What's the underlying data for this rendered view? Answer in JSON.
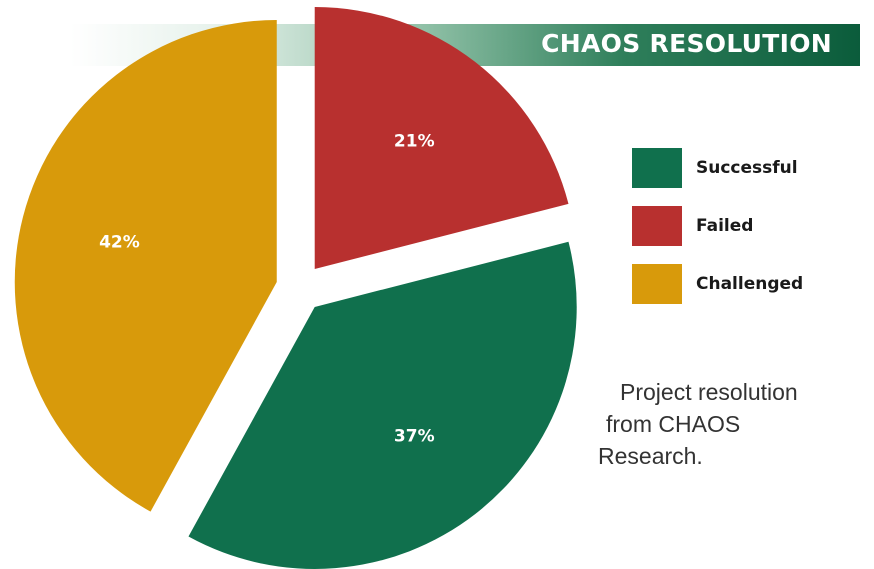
{
  "chart_data": {
    "type": "pie",
    "title": "CHAOS RESOLUTION",
    "categories": [
      "Successful",
      "Failed",
      "Challenged"
    ],
    "values": [
      37,
      21,
      42
    ],
    "value_labels": [
      "37%",
      "21%",
      "42%"
    ],
    "colors": [
      "#10704d",
      "#b8302f",
      "#d89a0b"
    ],
    "exploded": true,
    "legend_position": "right"
  },
  "legend": {
    "items": [
      {
        "label": "Successful",
        "color": "#10704d"
      },
      {
        "label": "Failed",
        "color": "#b8302f"
      },
      {
        "label": "Challenged",
        "color": "#d89a0b"
      }
    ]
  },
  "caption": {
    "lines": [
      "Project resolution",
      "from CHAOS",
      "Research."
    ]
  }
}
